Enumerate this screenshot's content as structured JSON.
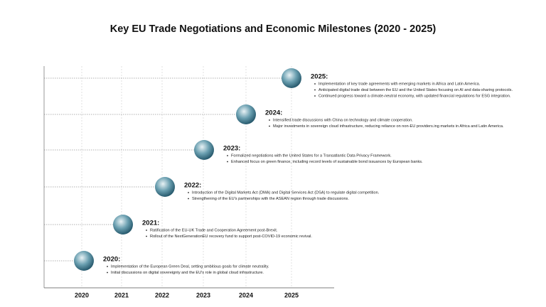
{
  "header": {
    "title": "Key EU Trade Negotiations and Economic Milestones (2020 - 2025)"
  },
  "axis": {
    "labels": [
      "2020",
      "2021",
      "2022",
      "2023",
      "2024",
      "2025"
    ]
  },
  "milestones": [
    {
      "year": "2025:",
      "items": [
        "Implementation of key trade agreements with emerging markets in Africa and Latin America.",
        "Anticipated digital trade deal between the EU and the United States focusing on AI and data-sharing protocols.",
        "Continued progress toward a climate-neutral economy, with updated financial regulations for ESG integration."
      ]
    },
    {
      "year": "2024:",
      "items": [
        "Intensified trade discussions with China on technology and climate cooperation.",
        "Major investments in sovereign cloud infrastructure, reducing reliance on non-EU providers.ing markets in Africa and Latin America."
      ]
    },
    {
      "year": "2023:",
      "items": [
        "Formalized negotiations with the United States for a Transatlantic Data Privacy Framework.",
        "Enhanced focus on green finance, including record levels of sustainable bond issuances by European banks."
      ]
    },
    {
      "year": "2022:",
      "items": [
        "Introduction of the Digital Markets Act (DMA) and Digital Services Act (DSA) to regulate digital competition.",
        "Strengthening of the EU's partnerships with the ASEAN region through trade discussions."
      ]
    },
    {
      "year": "2021:",
      "items": [
        "Ratification of the EU-UK Trade and Cooperation Agreement post-Brexit.",
        "Rollout of the NextGenerationEU recovery fund to support post-COVID-19 economic revival."
      ]
    },
    {
      "year": "2020:",
      "items": [
        "Implementation of the European Green Deal, setting ambitious goals for climate neutrality.",
        "Initial discussions on digital sovereignty and the EU's role in global cloud infrastructure."
      ]
    }
  ]
}
